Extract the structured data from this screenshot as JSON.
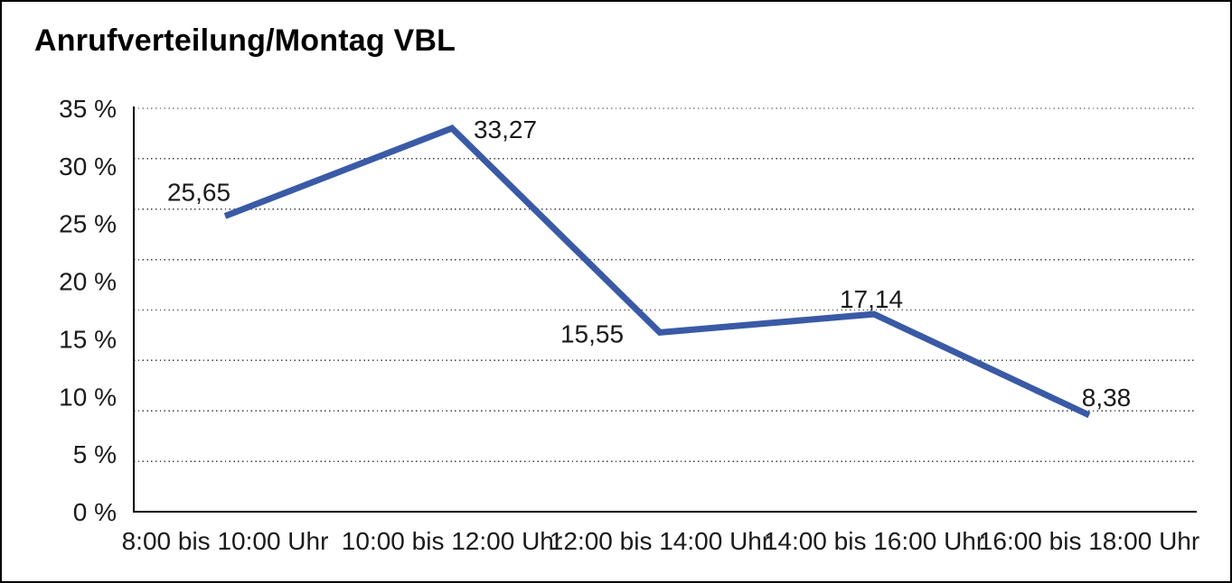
{
  "title": "Anrufverteilung/Montag VBL",
  "chart_data": {
    "type": "line",
    "title": "Anrufverteilung/Montag VBL",
    "categories": [
      "8:00 bis 10:00 Uhr",
      "10:00 bis 12:00 Uhr",
      "12:00 bis 14:00 Uhr",
      "14:00 bis 16:00 Uhr",
      "16:00 bis 18:00 Uhr"
    ],
    "values": [
      25.65,
      33.27,
      15.55,
      17.14,
      8.38
    ],
    "data_labels": [
      "25,65",
      "33,27",
      "15,55",
      "17,14",
      "8,38"
    ],
    "unit": "%",
    "ylim": [
      0,
      35
    ],
    "ytick_step": 5,
    "ytick_labels": [
      "0 %",
      "5 %",
      "10 %",
      "15 %",
      "20 %",
      "25 %",
      "30 %",
      "35 %"
    ],
    "xlabel": "",
    "ylabel": "",
    "grid": "horizontal-dotted",
    "legend": "none",
    "line_color": "#3A5AA6",
    "axis_color": "#000000",
    "gridline_color": "#3c3c3c",
    "text_color": "#1a1a1a"
  }
}
